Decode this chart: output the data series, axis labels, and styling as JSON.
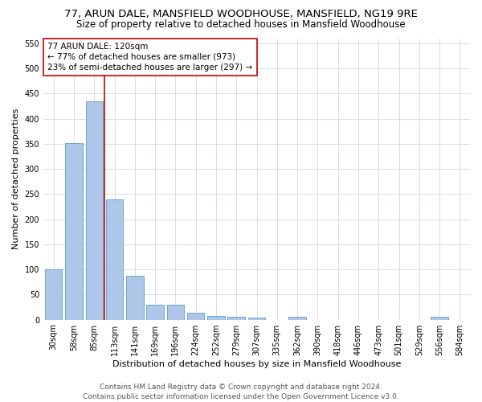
{
  "title": "77, ARUN DALE, MANSFIELD WOODHOUSE, MANSFIELD, NG19 9RE",
  "subtitle": "Size of property relative to detached houses in Mansfield Woodhouse",
  "xlabel": "Distribution of detached houses by size in Mansfield Woodhouse",
  "ylabel": "Number of detached properties",
  "categories": [
    "30sqm",
    "58sqm",
    "85sqm",
    "113sqm",
    "141sqm",
    "169sqm",
    "196sqm",
    "224sqm",
    "252sqm",
    "279sqm",
    "307sqm",
    "335sqm",
    "362sqm",
    "390sqm",
    "418sqm",
    "446sqm",
    "473sqm",
    "501sqm",
    "529sqm",
    "556sqm",
    "584sqm"
  ],
  "values": [
    100,
    352,
    435,
    240,
    87,
    30,
    30,
    14,
    8,
    5,
    4,
    0,
    5,
    0,
    0,
    0,
    0,
    0,
    0,
    5,
    0
  ],
  "bar_color": "#aec6e8",
  "bar_edge_color": "#5b9bd5",
  "grid_color": "#d0d8e8",
  "vline_x_index": 2.5,
  "vline_color": "#cc0000",
  "annotation_line1": "77 ARUN DALE: 120sqm",
  "annotation_line2": "← 77% of detached houses are smaller (973)",
  "annotation_line3": "23% of semi-detached houses are larger (297) →",
  "annotation_box_color": "#ffffff",
  "annotation_box_edge": "#cc0000",
  "ylim": [
    0,
    560
  ],
  "yticks": [
    0,
    50,
    100,
    150,
    200,
    250,
    300,
    350,
    400,
    450,
    500,
    550
  ],
  "footer_line1": "Contains HM Land Registry data © Crown copyright and database right 2024.",
  "footer_line2": "Contains public sector information licensed under the Open Government Licence v3.0.",
  "background_color": "#ffffff",
  "title_fontsize": 9.5,
  "subtitle_fontsize": 8.5,
  "xlabel_fontsize": 8,
  "ylabel_fontsize": 8,
  "tick_fontsize": 7,
  "annotation_fontsize": 7.5,
  "footer_fontsize": 6.5
}
